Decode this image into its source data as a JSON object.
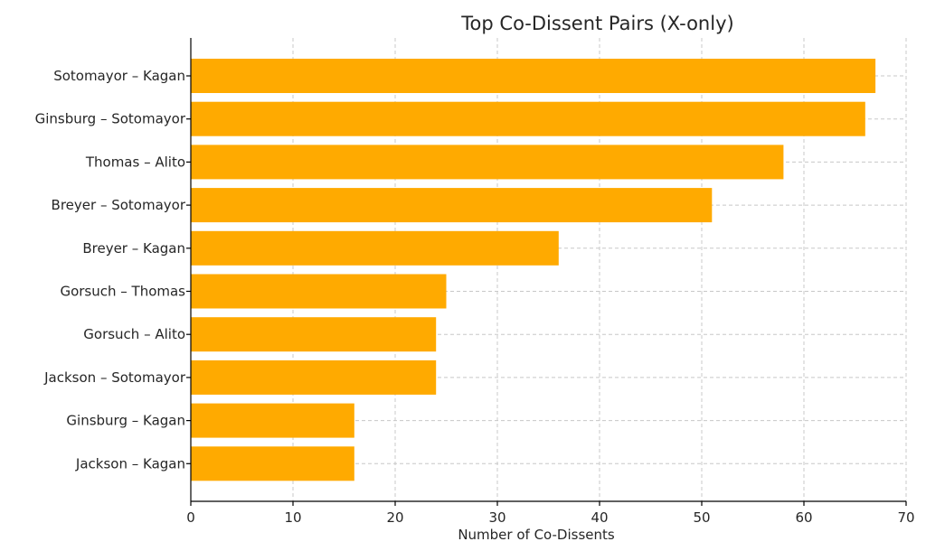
{
  "chart_data": {
    "type": "bar",
    "orientation": "horizontal",
    "title": "Top Co-Dissent Pairs (X-only)",
    "xlabel": "Number of Co-Dissents",
    "ylabel": "",
    "xlim": [
      0,
      70
    ],
    "xticks": [
      0,
      10,
      20,
      30,
      40,
      50,
      60,
      70
    ],
    "grid": true,
    "bar_color": "#FFAA00",
    "categories": [
      "Sotomayor – Kagan",
      "Ginsburg – Sotomayor",
      "Thomas – Alito",
      "Breyer – Sotomayor",
      "Breyer – Kagan",
      "Gorsuch – Thomas",
      "Gorsuch – Alito",
      "Jackson – Sotomayor",
      "Ginsburg – Kagan",
      "Jackson – Kagan"
    ],
    "values": [
      67,
      66,
      58,
      51,
      36,
      25,
      24,
      24,
      16,
      16
    ]
  }
}
